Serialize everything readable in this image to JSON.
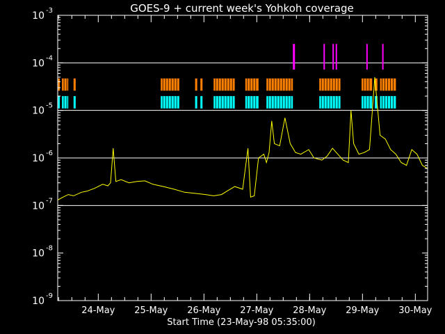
{
  "chart_data": {
    "type": "line",
    "title": "GOES-9 + current week's Yohkoh coverage",
    "xlabel": "Start Time (23-May-98 05:35:00)",
    "ylabel": "",
    "y_scale": "log",
    "ylim": [
      1e-09,
      0.001
    ],
    "xlim": [
      "23-May-98 05:35:00",
      "30-May-98 05:35:00"
    ],
    "x_ticks": [
      "24-May",
      "25-May",
      "26-May",
      "27-May",
      "28-May",
      "29-May",
      "30-May"
    ],
    "y_ticks": [
      {
        "value": 1e-09,
        "base": "10",
        "exp": "-9"
      },
      {
        "value": 1e-08,
        "base": "10",
        "exp": "-8"
      },
      {
        "value": 1e-07,
        "base": "10",
        "exp": "-7"
      },
      {
        "value": 1e-06,
        "base": "10",
        "exp": "-6"
      },
      {
        "value": 1e-05,
        "base": "10",
        "exp": "-5"
      },
      {
        "value": 0.0001,
        "base": "10",
        "exp": "-4"
      },
      {
        "value": 0.001,
        "base": "10",
        "exp": "-3"
      }
    ],
    "grid_lines_y": [
      1e-07,
      1e-06,
      1e-05,
      0.0001
    ],
    "colors": {
      "background": "#000000",
      "axes": "#ffffff",
      "flux": "#ffff00",
      "magenta": "#ff00ff",
      "orange": "#ff7f00",
      "cyan": "#00ffff"
    },
    "flux_series": {
      "x_days_from_start": [
        0.0,
        0.1,
        0.2,
        0.3,
        0.45,
        0.55,
        0.7,
        0.85,
        0.95,
        1.0,
        1.05,
        1.1,
        1.2,
        1.35,
        1.5,
        1.65,
        1.8,
        2.0,
        2.2,
        2.4,
        2.6,
        2.8,
        2.95,
        3.1,
        3.2,
        3.35,
        3.5,
        3.6,
        3.65,
        3.72,
        3.8,
        3.9,
        3.95,
        4.0,
        4.05,
        4.1,
        4.2,
        4.3,
        4.4,
        4.5,
        4.6,
        4.75,
        4.85,
        5.0,
        5.1,
        5.2,
        5.3,
        5.4,
        5.5,
        5.55,
        5.6,
        5.7,
        5.8,
        5.9,
        6.0,
        6.1,
        6.2,
        6.3,
        6.4,
        6.5,
        6.6,
        6.7,
        6.8,
        6.9,
        7.0
      ],
      "y_flux": [
        1.3e-07,
        1.5e-07,
        1.7e-07,
        1.6e-07,
        1.9e-07,
        2e-07,
        2.3e-07,
        2.8e-07,
        2.6e-07,
        3e-07,
        1.6e-06,
        3.2e-07,
        3.5e-07,
        3e-07,
        3.2e-07,
        3.3e-07,
        2.8e-07,
        2.5e-07,
        2.2e-07,
        1.9e-07,
        1.8e-07,
        1.7e-07,
        1.6e-07,
        1.7e-07,
        2e-07,
        2.5e-07,
        2.2e-07,
        1.6e-06,
        1.5e-07,
        1.6e-07,
        1e-06,
        1.2e-06,
        8e-07,
        1.3e-06,
        6e-06,
        2e-06,
        1.8e-06,
        7e-06,
        2e-06,
        1.3e-06,
        1.2e-06,
        1.5e-06,
        1e-06,
        9e-07,
        1.1e-06,
        1.6e-06,
        1.2e-06,
        9e-07,
        8e-07,
        1e-05,
        2e-06,
        1.2e-06,
        1.3e-06,
        1.5e-06,
        5e-05,
        3e-06,
        2.5e-06,
        1.5e-06,
        1.2e-06,
        8e-07,
        7e-07,
        1.5e-06,
        1.2e-06,
        7e-07,
        6e-07
      ]
    },
    "coverage_rows": [
      {
        "color_key": "magenta",
        "y_top": 0.00025,
        "y_bottom": 7.2e-05,
        "intervals": [
          [
            4.45,
            4.49
          ],
          [
            5.03,
            5.05
          ],
          [
            5.2,
            5.21
          ],
          [
            5.26,
            5.28
          ],
          [
            5.84,
            5.85
          ],
          [
            6.14,
            6.16
          ]
        ]
      },
      {
        "color_key": "orange",
        "y_top": 4.7e-05,
        "y_bottom": 2.6e-05,
        "intervals": [
          [
            0.0,
            0.04
          ],
          [
            0.08,
            0.2
          ],
          [
            0.3,
            0.34
          ],
          [
            1.95,
            2.3
          ],
          [
            2.6,
            2.64
          ],
          [
            2.7,
            2.74
          ],
          [
            2.95,
            3.35
          ],
          [
            3.55,
            3.8
          ],
          [
            3.95,
            4.45
          ],
          [
            4.95,
            5.35
          ],
          [
            5.75,
            5.95
          ],
          [
            6.0,
            6.05
          ],
          [
            6.1,
            6.4
          ]
        ]
      },
      {
        "color_key": "cyan",
        "y_top": 2e-05,
        "y_bottom": 1.1e-05,
        "intervals": [
          [
            0.0,
            0.04
          ],
          [
            0.08,
            0.2
          ],
          [
            0.3,
            0.34
          ],
          [
            1.95,
            2.3
          ],
          [
            2.6,
            2.64
          ],
          [
            2.7,
            2.74
          ],
          [
            2.95,
            3.35
          ],
          [
            3.55,
            3.8
          ],
          [
            3.95,
            4.45
          ],
          [
            4.95,
            5.35
          ],
          [
            5.75,
            5.95
          ],
          [
            6.0,
            6.05
          ],
          [
            6.1,
            6.4
          ]
        ]
      }
    ]
  }
}
